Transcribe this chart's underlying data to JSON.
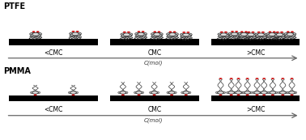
{
  "title_ptfe": "PTFE",
  "title_pmma": "PMMA",
  "label_less_cmc": "<CMC",
  "label_cmc": "CMC",
  "label_more_cmc": ">CMC",
  "label_axis": "C(mol)",
  "red_color": "#cc0000",
  "dark_color": "#333333",
  "gray_color": "#888888",
  "figsize": [
    3.78,
    1.73
  ],
  "dpi": 100,
  "ptfe_n_mols": [
    2,
    5,
    8
  ],
  "pmma_n_mols": [
    2,
    5,
    9
  ]
}
